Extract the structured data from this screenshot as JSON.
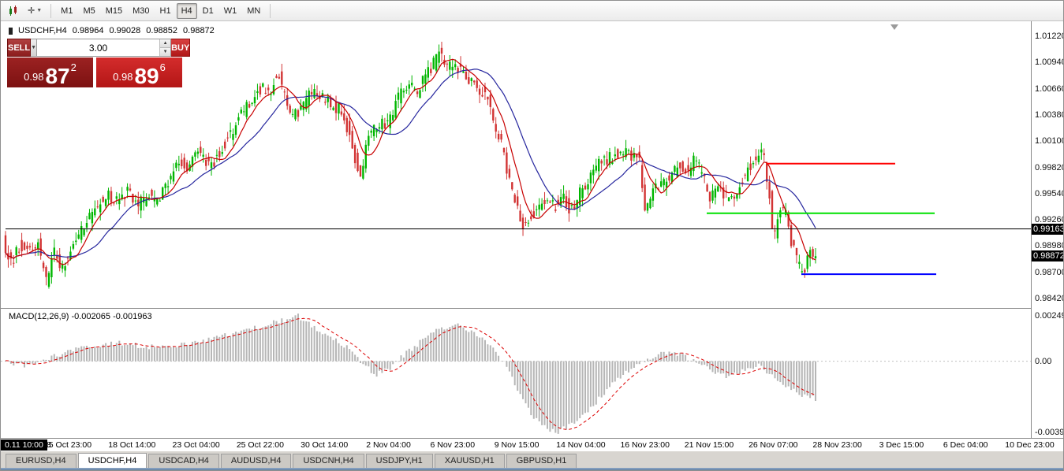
{
  "toolbar": {
    "timeframes": [
      {
        "label": "M1",
        "active": false
      },
      {
        "label": "M5",
        "active": false
      },
      {
        "label": "M15",
        "active": false
      },
      {
        "label": "M30",
        "active": false
      },
      {
        "label": "H1",
        "active": false
      },
      {
        "label": "H4",
        "active": true
      },
      {
        "label": "D1",
        "active": false
      },
      {
        "label": "W1",
        "active": false
      },
      {
        "label": "MN",
        "active": false
      }
    ]
  },
  "chart_header": {
    "symbol": "USDCHF,H4",
    "open": "0.98964",
    "high": "0.99028",
    "low": "0.98852",
    "close": "0.98872"
  },
  "macd_label": "MACD(12,26,9) -0.002065 -0.001963",
  "trade_panel": {
    "sell_label": "SELL",
    "buy_label": "BUY",
    "volume": "3.00",
    "sell_price": {
      "base": "0.98",
      "big": "87",
      "sup": "2"
    },
    "buy_price": {
      "base": "0.98",
      "big": "89",
      "sup": "6"
    }
  },
  "price_axis": {
    "labels": [
      "1.01220",
      "1.00940",
      "1.00660",
      "1.00380",
      "1.00100",
      "0.99820",
      "0.99540",
      "0.99260",
      "0.98980",
      "0.98700",
      "0.98420"
    ],
    "line_badge": "0.99163",
    "last_badge": "0.98872"
  },
  "macd_axis": {
    "labels": [
      "0.002492",
      "0.00",
      "-0.003913"
    ]
  },
  "time_axis": {
    "badge": "0.11 10:00",
    "partial": "8",
    "labels": [
      "15 Oct 23:00",
      "18 Oct 14:00",
      "23 Oct 04:00",
      "25 Oct 22:00",
      "30 Oct 14:00",
      "2 Nov 04:00",
      "6 Nov 23:00",
      "9 Nov 15:00",
      "14 Nov 04:00",
      "16 Nov 23:00",
      "21 Nov 15:00",
      "26 Nov 07:00",
      "28 Nov 23:00",
      "3 Dec 15:00",
      "6 Dec 04:00",
      "10 Dec 23:00"
    ]
  },
  "tabs": [
    {
      "label": "EURUSD,H4",
      "active": false
    },
    {
      "label": "USDCHF,H4",
      "active": true
    },
    {
      "label": "USDCAD,H4",
      "active": false
    },
    {
      "label": "AUDUSD,H4",
      "active": false
    },
    {
      "label": "USDCNH,H4",
      "active": false
    },
    {
      "label": "USDJPY,H1",
      "active": false
    },
    {
      "label": "XAUUSD,H1",
      "active": false
    },
    {
      "label": "GBPUSD,H1",
      "active": false
    }
  ],
  "colors": {
    "up": "#00b600",
    "down": "#d23434",
    "ma_fast": "#c80000",
    "ma_slow": "#26269e",
    "macd_signal": "#dc0000",
    "hist": "#b6b6b6",
    "hline_red": "#ff0000",
    "hline_green": "#00e000",
    "hline_blue": "#0000ff",
    "price_line": "#000000"
  },
  "chart_data": {
    "type": "candlestick",
    "symbol": "USDCHF",
    "timeframe": "H4",
    "ohlc_current": {
      "open": 0.98964,
      "high": 0.99028,
      "low": 0.98852,
      "close": 0.98872
    },
    "y_axis": {
      "max": 1.0122,
      "min": 0.9842,
      "tick": 0.0028
    },
    "candle_count": 300,
    "data_end_fraction": 0.79,
    "price_anchors": [
      [
        0.0,
        0.9905
      ],
      [
        0.008,
        0.9878
      ],
      [
        0.016,
        0.9898
      ],
      [
        0.026,
        0.989
      ],
      [
        0.034,
        0.9902
      ],
      [
        0.042,
        0.9858
      ],
      [
        0.05,
        0.9893
      ],
      [
        0.058,
        0.9873
      ],
      [
        0.068,
        0.99
      ],
      [
        0.08,
        0.9922
      ],
      [
        0.092,
        0.994
      ],
      [
        0.102,
        0.9952
      ],
      [
        0.112,
        0.9945
      ],
      [
        0.122,
        0.9958
      ],
      [
        0.132,
        0.9942
      ],
      [
        0.142,
        0.9952
      ],
      [
        0.152,
        0.9946
      ],
      [
        0.162,
        0.9968
      ],
      [
        0.172,
        0.9988
      ],
      [
        0.182,
        0.9982
      ],
      [
        0.192,
        1.0002
      ],
      [
        0.202,
        0.9982
      ],
      [
        0.212,
        1.0
      ],
      [
        0.222,
        1.0018
      ],
      [
        0.232,
        1.0038
      ],
      [
        0.242,
        1.0052
      ],
      [
        0.252,
        1.0068
      ],
      [
        0.26,
        1.0058
      ],
      [
        0.268,
        1.0088
      ],
      [
        0.274,
        1.006
      ],
      [
        0.282,
        1.0035
      ],
      [
        0.292,
        1.0048
      ],
      [
        0.302,
        1.0062
      ],
      [
        0.312,
        1.0055
      ],
      [
        0.322,
        1.0048
      ],
      [
        0.332,
        1.004
      ],
      [
        0.342,
        1.0002
      ],
      [
        0.348,
        0.9966
      ],
      [
        0.356,
        1.0012
      ],
      [
        0.366,
        1.003
      ],
      [
        0.376,
        1.0026
      ],
      [
        0.386,
        1.0058
      ],
      [
        0.396,
        1.0072
      ],
      [
        0.404,
        1.0062
      ],
      [
        0.412,
        1.008
      ],
      [
        0.42,
        1.0092
      ],
      [
        0.426,
        1.0108
      ],
      [
        0.432,
        1.0086
      ],
      [
        0.44,
        1.0096
      ],
      [
        0.448,
        1.0082
      ],
      [
        0.456,
        1.0076
      ],
      [
        0.464,
        1.0066
      ],
      [
        0.472,
        1.0058
      ],
      [
        0.48,
        1.0028
      ],
      [
        0.488,
        0.9998
      ],
      [
        0.496,
        0.9958
      ],
      [
        0.504,
        0.9928
      ],
      [
        0.51,
        0.9918
      ],
      [
        0.518,
        0.9936
      ],
      [
        0.528,
        0.9946
      ],
      [
        0.538,
        0.994
      ],
      [
        0.546,
        0.995
      ],
      [
        0.554,
        0.9934
      ],
      [
        0.562,
        0.9952
      ],
      [
        0.572,
        0.9972
      ],
      [
        0.582,
        0.9986
      ],
      [
        0.592,
        0.9992
      ],
      [
        0.602,
        1.0
      ],
      [
        0.612,
        0.9994
      ],
      [
        0.62,
        1.0
      ],
      [
        0.627,
        0.993
      ],
      [
        0.634,
        0.9956
      ],
      [
        0.642,
        0.9962
      ],
      [
        0.652,
        0.9972
      ],
      [
        0.66,
        0.9986
      ],
      [
        0.667,
        0.9976
      ],
      [
        0.674,
        0.999
      ],
      [
        0.682,
        0.9976
      ],
      [
        0.69,
        0.995
      ],
      [
        0.698,
        0.996
      ],
      [
        0.706,
        0.9952
      ],
      [
        0.714,
        0.9946
      ],
      [
        0.722,
        0.997
      ],
      [
        0.73,
        0.9986
      ],
      [
        0.737,
        0.9992
      ],
      [
        0.742,
        0.9996
      ],
      [
        0.747,
        0.9958
      ],
      [
        0.752,
        0.9902
      ],
      [
        0.758,
        0.994
      ],
      [
        0.764,
        0.993
      ],
      [
        0.77,
        0.9898
      ],
      [
        0.776,
        0.9876
      ],
      [
        0.781,
        0.9868
      ],
      [
        0.785,
        0.9892
      ],
      [
        0.79,
        0.98872
      ]
    ],
    "h_lines": [
      {
        "name": "resistance-line-red",
        "color": "#ff0000",
        "price": 0.9986,
        "x1f": 0.742,
        "x2f": 0.868,
        "width": 2
      },
      {
        "name": "support-line-green",
        "color": "#00e000",
        "price": 0.9933,
        "x1f": 0.684,
        "x2f": 0.906,
        "width": 2
      },
      {
        "name": "support-line-blue",
        "color": "#0000ff",
        "price": 0.9868,
        "x1f": 0.776,
        "x2f": 0.908,
        "width": 2
      },
      {
        "name": "price-level-line",
        "color": "#000000",
        "price": 0.99163,
        "x1f": 0.0,
        "x2f": 1.0,
        "width": 1
      }
    ],
    "macd": {
      "params": "12,26,9",
      "value": -0.002065,
      "signal": -0.001963,
      "axis_max": 0.002492,
      "axis_min": -0.003913,
      "anchors": [
        [
          0.0,
          0.0
        ],
        [
          0.02,
          -0.0003
        ],
        [
          0.05,
          0.0003
        ],
        [
          0.08,
          0.0008
        ],
        [
          0.11,
          0.001
        ],
        [
          0.14,
          0.0008
        ],
        [
          0.17,
          0.0009
        ],
        [
          0.2,
          0.0012
        ],
        [
          0.23,
          0.0016
        ],
        [
          0.26,
          0.0021
        ],
        [
          0.285,
          0.0025
        ],
        [
          0.3,
          0.0019
        ],
        [
          0.32,
          0.0012
        ],
        [
          0.335,
          0.0007
        ],
        [
          0.35,
          -0.0003
        ],
        [
          0.362,
          -0.0007
        ],
        [
          0.375,
          -0.0004
        ],
        [
          0.39,
          0.0004
        ],
        [
          0.41,
          0.0013
        ],
        [
          0.425,
          0.0018
        ],
        [
          0.44,
          0.0021
        ],
        [
          0.455,
          0.0016
        ],
        [
          0.47,
          0.001
        ],
        [
          0.485,
          0.0
        ],
        [
          0.5,
          -0.0016
        ],
        [
          0.515,
          -0.0031
        ],
        [
          0.53,
          -0.0038
        ],
        [
          0.54,
          -0.0039
        ],
        [
          0.555,
          -0.0033
        ],
        [
          0.57,
          -0.0026
        ],
        [
          0.585,
          -0.0017
        ],
        [
          0.6,
          -0.0008
        ],
        [
          0.615,
          -0.0002
        ],
        [
          0.63,
          0.0002
        ],
        [
          0.645,
          0.0005
        ],
        [
          0.66,
          0.0003
        ],
        [
          0.675,
          -0.0001
        ],
        [
          0.69,
          -0.0006
        ],
        [
          0.705,
          -0.0009
        ],
        [
          0.72,
          -0.0005
        ],
        [
          0.735,
          -0.0002
        ],
        [
          0.75,
          -0.0009
        ],
        [
          0.765,
          -0.0015
        ],
        [
          0.778,
          -0.0019
        ],
        [
          0.79,
          -0.002065
        ]
      ]
    }
  }
}
